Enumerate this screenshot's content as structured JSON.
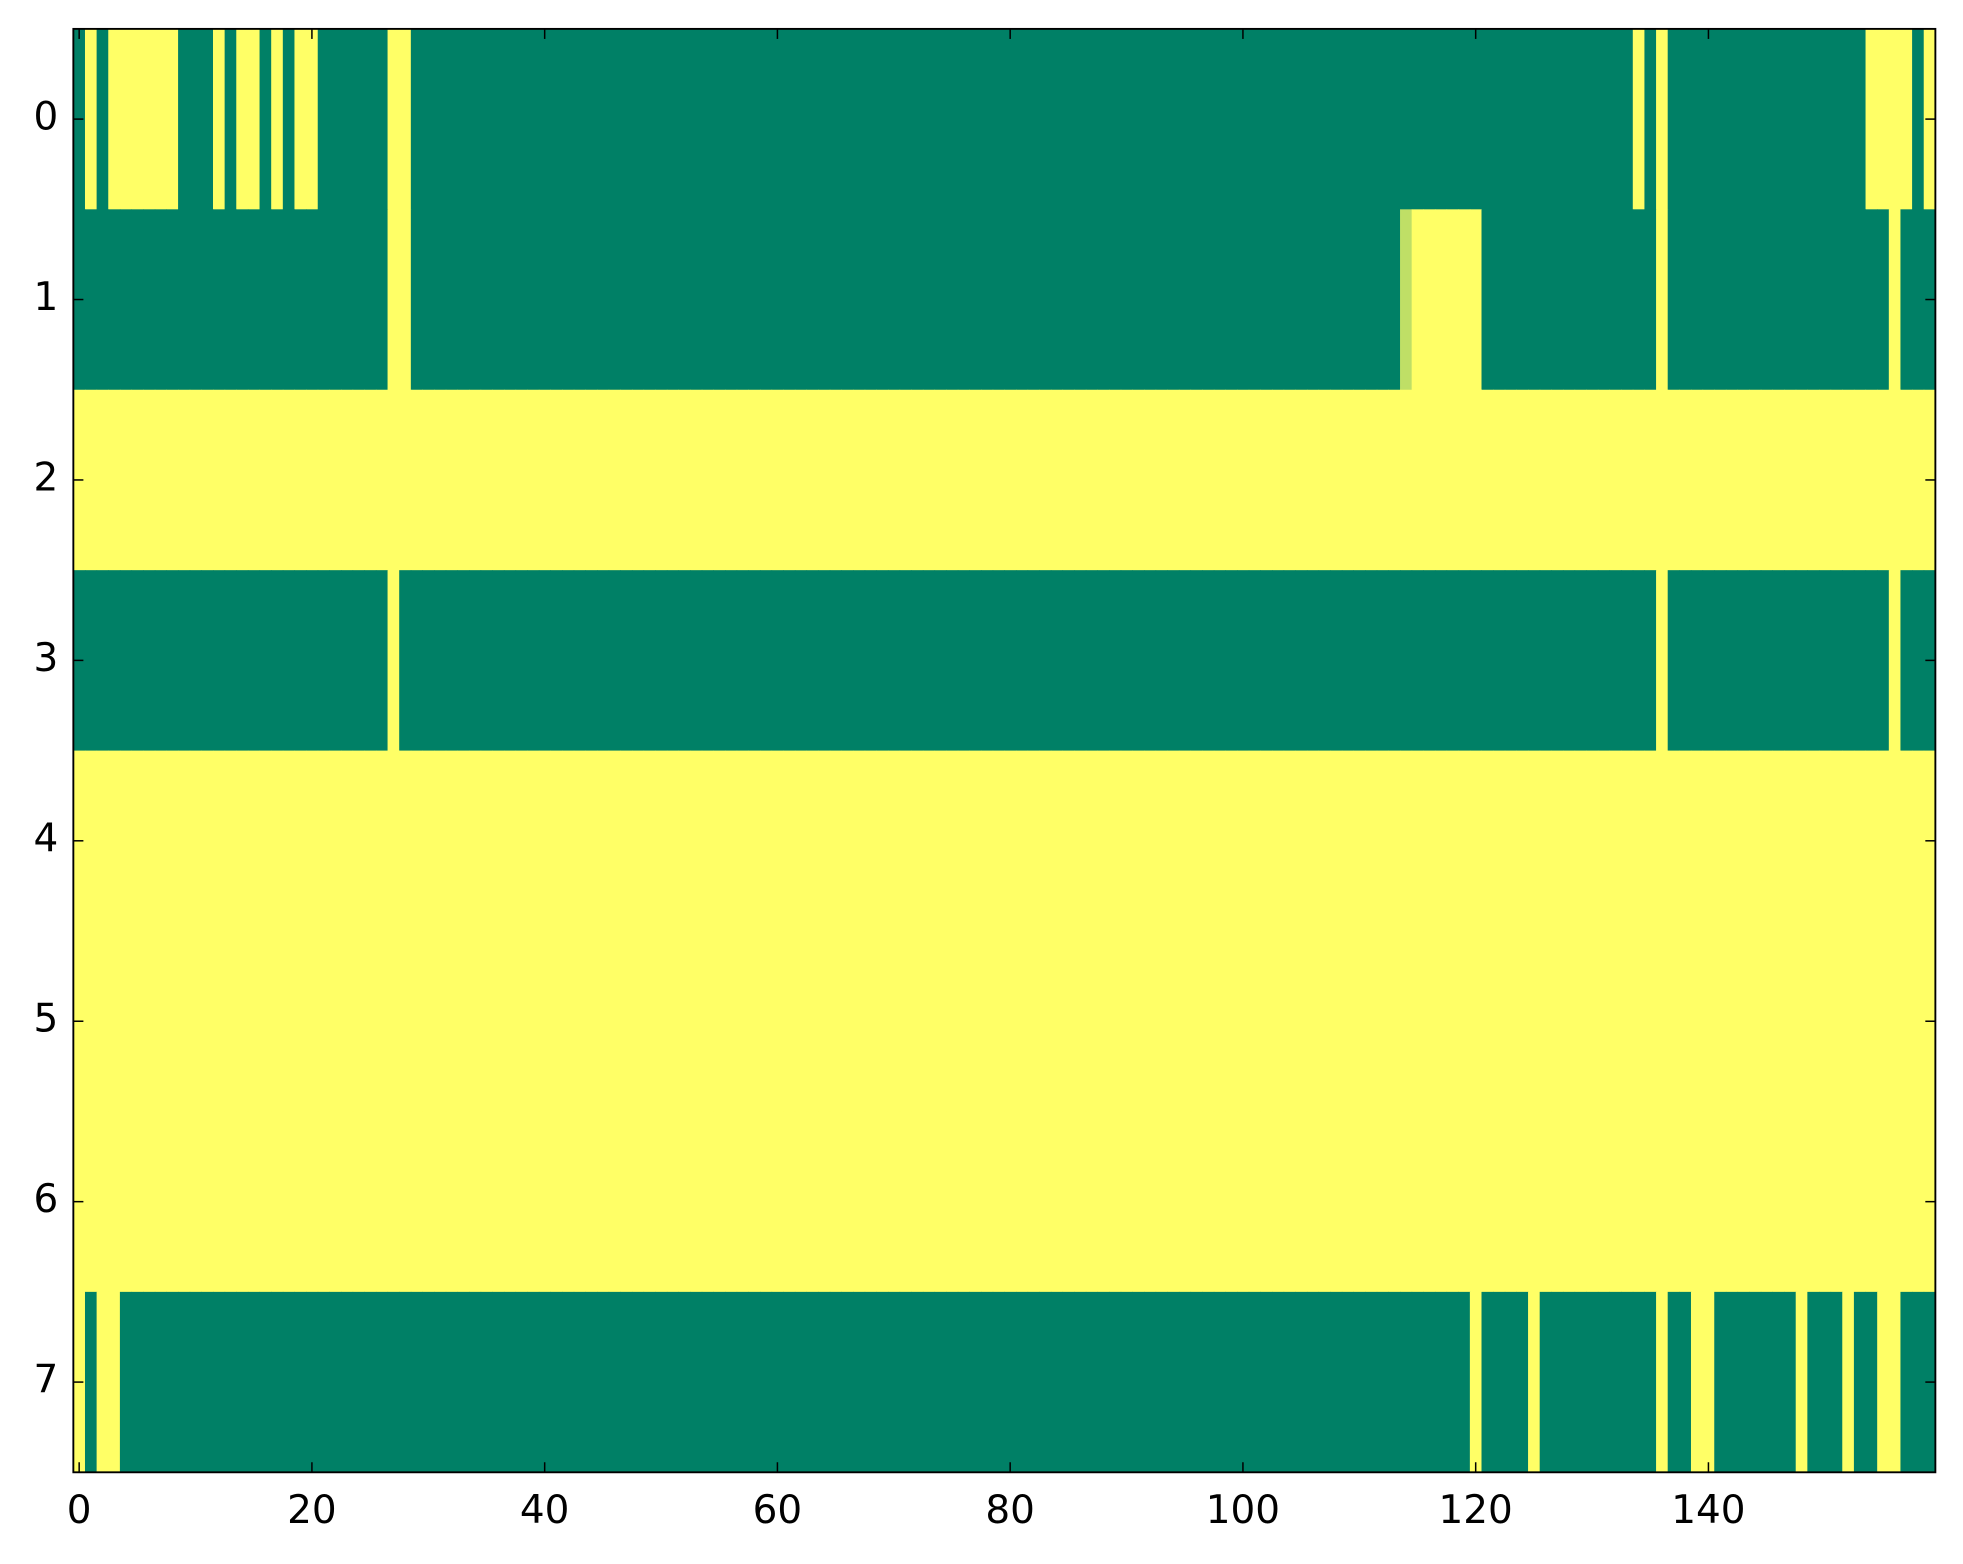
{
  "chart_data": {
    "type": "heatmap",
    "colors": [
      "#008066",
      "#ffff66"
    ],
    "clim": [
      0,
      1
    ],
    "xlim": [
      -0.5,
      159.5
    ],
    "ylim": [
      7.5,
      -0.5
    ],
    "xticks": [
      0,
      20,
      40,
      60,
      80,
      100,
      120,
      140
    ],
    "yticks": [
      0,
      1,
      2,
      3,
      4,
      5,
      6,
      7
    ],
    "z": [
      [
        0,
        1,
        0,
        1,
        1,
        1,
        1,
        1,
        1,
        0,
        0,
        0,
        1,
        0,
        1,
        1,
        0,
        1,
        0,
        1,
        1,
        0,
        0,
        0,
        0,
        0,
        0,
        1,
        1,
        0,
        0,
        0,
        0,
        0,
        0,
        0,
        0,
        0,
        0,
        0,
        0,
        0,
        0,
        0,
        0,
        0,
        0,
        0,
        0,
        0,
        0,
        0,
        0,
        0,
        0,
        0,
        0,
        0,
        0,
        0,
        0,
        0,
        0,
        0,
        0,
        0,
        0,
        0,
        0,
        0,
        0,
        0,
        0,
        0,
        0,
        0,
        0,
        0,
        0,
        0,
        0,
        0,
        0,
        0,
        0,
        0,
        0,
        0,
        0,
        0,
        0,
        0,
        0,
        0,
        0,
        0,
        0,
        0,
        0,
        0,
        0,
        0,
        0,
        0,
        0,
        0,
        0,
        0,
        0,
        0,
        0,
        0,
        0,
        0,
        0,
        0,
        0,
        0,
        0,
        0,
        0,
        0,
        0,
        0,
        0,
        0,
        0,
        0,
        0,
        0,
        0,
        0,
        0,
        0,
        1,
        0,
        1,
        0,
        0,
        0,
        0,
        0,
        0,
        0,
        0,
        0,
        0,
        0,
        0,
        0,
        0,
        0,
        0,
        0,
        1,
        1,
        1,
        1,
        0,
        1
      ],
      [
        0,
        0,
        0,
        0,
        0,
        0,
        0,
        0,
        0,
        0,
        0,
        0,
        0,
        0,
        0,
        0,
        0,
        0,
        0,
        0,
        0,
        0,
        0,
        0,
        0,
        0,
        0,
        1,
        1,
        0,
        0,
        0,
        0,
        0,
        0,
        0,
        0,
        0,
        0,
        0,
        0,
        0,
        0,
        0,
        0,
        0,
        0,
        0,
        0,
        0,
        0,
        0,
        0,
        0,
        0,
        0,
        0,
        0,
        0,
        0,
        0,
        0,
        0,
        0,
        0,
        0,
        0,
        0,
        0,
        0,
        0,
        0,
        0,
        0,
        0,
        0,
        0,
        0,
        0,
        0,
        0,
        0,
        0,
        0,
        0,
        0,
        0,
        0,
        0,
        0,
        0,
        0,
        0,
        0,
        0,
        0,
        0,
        0,
        0,
        0,
        0,
        0,
        0,
        0,
        0,
        0,
        0,
        0,
        0,
        0,
        0,
        0,
        0,
        0,
        0.75,
        1,
        1,
        1,
        1,
        1,
        1,
        0,
        0,
        0,
        0,
        0,
        0,
        0,
        0,
        0,
        0,
        0,
        0,
        0,
        0,
        0,
        1,
        0,
        0,
        0,
        0,
        0,
        0,
        0,
        0,
        0,
        0,
        0,
        0,
        0,
        0,
        0,
        0,
        0,
        0,
        0,
        1,
        0,
        0,
        0
      ],
      [
        1,
        1,
        1,
        1,
        1,
        1,
        1,
        1,
        1,
        1,
        1,
        1,
        1,
        1,
        1,
        1,
        1,
        1,
        1,
        1,
        1,
        1,
        1,
        1,
        1,
        1,
        1,
        1,
        1,
        1,
        1,
        1,
        1,
        1,
        1,
        1,
        1,
        1,
        1,
        1,
        1,
        1,
        1,
        1,
        1,
        1,
        1,
        1,
        1,
        1,
        1,
        1,
        1,
        1,
        1,
        1,
        1,
        1,
        1,
        1,
        1,
        1,
        1,
        1,
        1,
        1,
        1,
        1,
        1,
        1,
        1,
        1,
        1,
        1,
        1,
        1,
        1,
        1,
        1,
        1,
        1,
        1,
        1,
        1,
        1,
        1,
        1,
        1,
        1,
        1,
        1,
        1,
        1,
        1,
        1,
        1,
        1,
        1,
        1,
        1,
        1,
        1,
        1,
        1,
        1,
        1,
        1,
        1,
        1,
        1,
        1,
        1,
        1,
        1,
        1,
        1,
        1,
        1,
        1,
        1,
        1,
        1,
        1,
        1,
        1,
        1,
        1,
        1,
        1,
        1,
        1,
        1,
        1,
        1,
        1,
        1,
        1,
        1,
        1,
        1,
        1,
        1,
        1,
        1,
        1,
        1,
        1,
        1,
        1,
        1,
        1,
        1,
        1,
        1,
        1,
        1,
        1,
        1,
        1,
        1
      ],
      [
        0,
        0,
        0,
        0,
        0,
        0,
        0,
        0,
        0,
        0,
        0,
        0,
        0,
        0,
        0,
        0,
        0,
        0,
        0,
        0,
        0,
        0,
        0,
        0,
        0,
        0,
        0,
        1,
        0,
        0,
        0,
        0,
        0,
        0,
        0,
        0,
        0,
        0,
        0,
        0,
        0,
        0,
        0,
        0,
        0,
        0,
        0,
        0,
        0,
        0,
        0,
        0,
        0,
        0,
        0,
        0,
        0,
        0,
        0,
        0,
        0,
        0,
        0,
        0,
        0,
        0,
        0,
        0,
        0,
        0,
        0,
        0,
        0,
        0,
        0,
        0,
        0,
        0,
        0,
        0,
        0,
        0,
        0,
        0,
        0,
        0,
        0,
        0,
        0,
        0,
        0,
        0,
        0,
        0,
        0,
        0,
        0,
        0,
        0,
        0,
        0,
        0,
        0,
        0,
        0,
        0,
        0,
        0,
        0,
        0,
        0,
        0,
        0,
        0,
        0,
        0,
        0,
        0,
        0,
        0,
        0,
        0,
        0,
        0,
        0,
        0,
        0,
        0,
        0,
        0,
        0,
        0,
        0,
        0,
        0,
        0,
        1,
        0,
        0,
        0,
        0,
        0,
        0,
        0,
        0,
        0,
        0,
        0,
        0,
        0,
        0,
        0,
        0,
        0,
        0,
        0,
        1,
        0,
        0,
        0
      ],
      [
        1,
        1,
        1,
        1,
        1,
        1,
        1,
        1,
        1,
        1,
        1,
        1,
        1,
        1,
        1,
        1,
        1,
        1,
        1,
        1,
        1,
        1,
        1,
        1,
        1,
        1,
        1,
        1,
        1,
        1,
        1,
        1,
        1,
        1,
        1,
        1,
        1,
        1,
        1,
        1,
        1,
        1,
        1,
        1,
        1,
        1,
        1,
        1,
        1,
        1,
        1,
        1,
        1,
        1,
        1,
        1,
        1,
        1,
        1,
        1,
        1,
        1,
        1,
        1,
        1,
        1,
        1,
        1,
        1,
        1,
        1,
        1,
        1,
        1,
        1,
        1,
        1,
        1,
        1,
        1,
        1,
        1,
        1,
        1,
        1,
        1,
        1,
        1,
        1,
        1,
        1,
        1,
        1,
        1,
        1,
        1,
        1,
        1,
        1,
        1,
        1,
        1,
        1,
        1,
        1,
        1,
        1,
        1,
        1,
        1,
        1,
        1,
        1,
        1,
        1,
        1,
        1,
        1,
        1,
        1,
        1,
        1,
        1,
        1,
        1,
        1,
        1,
        1,
        1,
        1,
        1,
        1,
        1,
        1,
        1,
        1,
        1,
        1,
        1,
        1,
        1,
        1,
        1,
        1,
        1,
        1,
        1,
        1,
        1,
        1,
        1,
        1,
        1,
        1,
        1,
        1,
        1,
        1,
        1,
        1
      ],
      [
        1,
        1,
        1,
        1,
        1,
        1,
        1,
        1,
        1,
        1,
        1,
        1,
        1,
        1,
        1,
        1,
        1,
        1,
        1,
        1,
        1,
        1,
        1,
        1,
        1,
        1,
        1,
        1,
        1,
        1,
        1,
        1,
        1,
        1,
        1,
        1,
        1,
        1,
        1,
        1,
        1,
        1,
        1,
        1,
        1,
        1,
        1,
        1,
        1,
        1,
        1,
        1,
        1,
        1,
        1,
        1,
        1,
        1,
        1,
        1,
        1,
        1,
        1,
        1,
        1,
        1,
        1,
        1,
        1,
        1,
        1,
        1,
        1,
        1,
        1,
        1,
        1,
        1,
        1,
        1,
        1,
        1,
        1,
        1,
        1,
        1,
        1,
        1,
        1,
        1,
        1,
        1,
        1,
        1,
        1,
        1,
        1,
        1,
        1,
        1,
        1,
        1,
        1,
        1,
        1,
        1,
        1,
        1,
        1,
        1,
        1,
        1,
        1,
        1,
        1,
        1,
        1,
        1,
        1,
        1,
        1,
        1,
        1,
        1,
        1,
        1,
        1,
        1,
        1,
        1,
        1,
        1,
        1,
        1,
        1,
        1,
        1,
        1,
        1,
        1,
        1,
        1,
        1,
        1,
        1,
        1,
        1,
        1,
        1,
        1,
        1,
        1,
        1,
        1,
        1,
        1,
        1,
        1,
        1,
        1
      ],
      [
        1,
        1,
        1,
        1,
        1,
        1,
        1,
        1,
        1,
        1,
        1,
        1,
        1,
        1,
        1,
        1,
        1,
        1,
        1,
        1,
        1,
        1,
        1,
        1,
        1,
        1,
        1,
        1,
        1,
        1,
        1,
        1,
        1,
        1,
        1,
        1,
        1,
        1,
        1,
        1,
        1,
        1,
        1,
        1,
        1,
        1,
        1,
        1,
        1,
        1,
        1,
        1,
        1,
        1,
        1,
        1,
        1,
        1,
        1,
        1,
        1,
        1,
        1,
        1,
        1,
        1,
        1,
        1,
        1,
        1,
        1,
        1,
        1,
        1,
        1,
        1,
        1,
        1,
        1,
        1,
        1,
        1,
        1,
        1,
        1,
        1,
        1,
        1,
        1,
        1,
        1,
        1,
        1,
        1,
        1,
        1,
        1,
        1,
        1,
        1,
        1,
        1,
        1,
        1,
        1,
        1,
        1,
        1,
        1,
        1,
        1,
        1,
        1,
        1,
        1,
        1,
        1,
        1,
        1,
        1,
        1,
        1,
        1,
        1,
        1,
        1,
        1,
        1,
        1,
        1,
        1,
        1,
        1,
        1,
        1,
        1,
        1,
        1,
        1,
        1,
        1,
        1,
        1,
        1,
        1,
        1,
        1,
        1,
        1,
        1,
        1,
        1,
        1,
        1,
        1,
        1,
        1,
        1,
        1,
        1
      ],
      [
        1,
        0,
        1,
        1,
        0,
        0,
        0,
        0,
        0,
        0,
        0,
        0,
        0,
        0,
        0,
        0,
        0,
        0,
        0,
        0,
        0,
        0,
        0,
        0,
        0,
        0,
        0,
        0,
        0,
        0,
        0,
        0,
        0,
        0,
        0,
        0,
        0,
        0,
        0,
        0,
        0,
        0,
        0,
        0,
        0,
        0,
        0,
        0,
        0,
        0,
        0,
        0,
        0,
        0,
        0,
        0,
        0,
        0,
        0,
        0,
        0,
        0,
        0,
        0,
        0,
        0,
        0,
        0,
        0,
        0,
        0,
        0,
        0,
        0,
        0,
        0,
        0,
        0,
        0,
        0,
        0,
        0,
        0,
        0,
        0,
        0,
        0,
        0,
        0,
        0,
        0,
        0,
        0,
        0,
        0,
        0,
        0,
        0,
        0,
        0,
        0,
        0,
        0,
        0,
        0,
        0,
        0,
        0,
        0,
        0,
        0,
        0,
        0,
        0,
        0,
        0,
        0,
        0,
        0,
        0,
        1,
        0,
        0,
        0,
        0,
        1,
        0,
        0,
        0,
        0,
        0,
        0,
        0,
        0,
        0,
        0,
        1,
        0,
        0,
        1,
        1,
        0,
        0,
        0,
        0,
        0,
        0,
        0,
        1,
        0,
        0,
        0,
        1,
        0,
        0,
        1,
        1,
        0,
        0,
        0
      ]
    ]
  }
}
